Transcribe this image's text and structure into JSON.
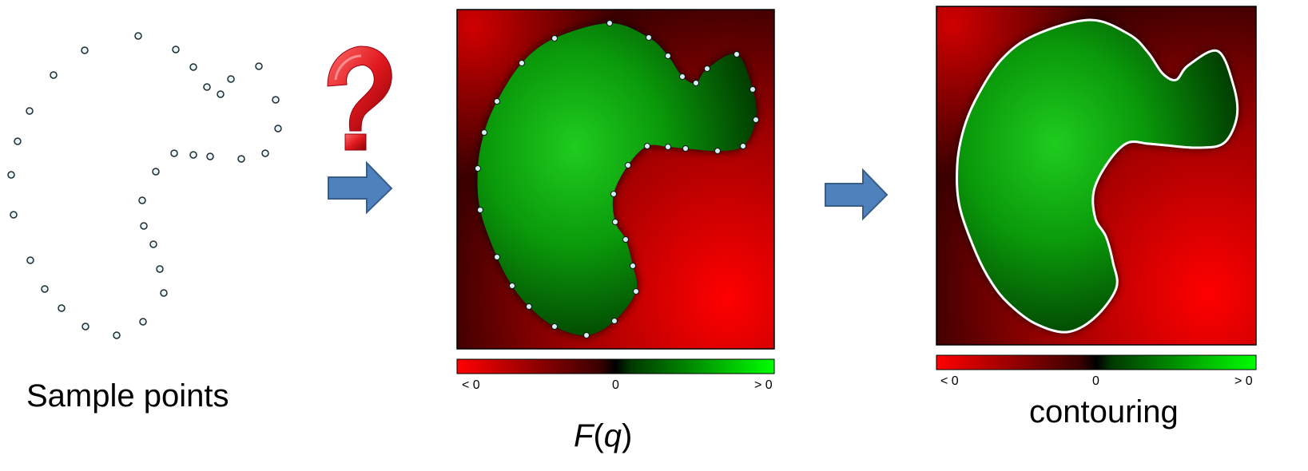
{
  "labels": {
    "sample_points": "Sample points",
    "fq_italic_f": "F",
    "fq_open": "(",
    "fq_italic_q": "q",
    "fq_close": ")",
    "contouring": "contouring"
  },
  "colorbar": {
    "neg": "< 0",
    "zero": "0",
    "pos": "> 0"
  },
  "colors": {
    "negative": "#ff0000",
    "zero": "#000000",
    "positive": "#00ff00",
    "point_fill": "#e8f4f8",
    "arrow_fill": "#4f81bd",
    "question_mark": "#e0191e"
  },
  "icons": {
    "arrow": "right-arrow-icon",
    "question": "question-mark-icon"
  }
}
